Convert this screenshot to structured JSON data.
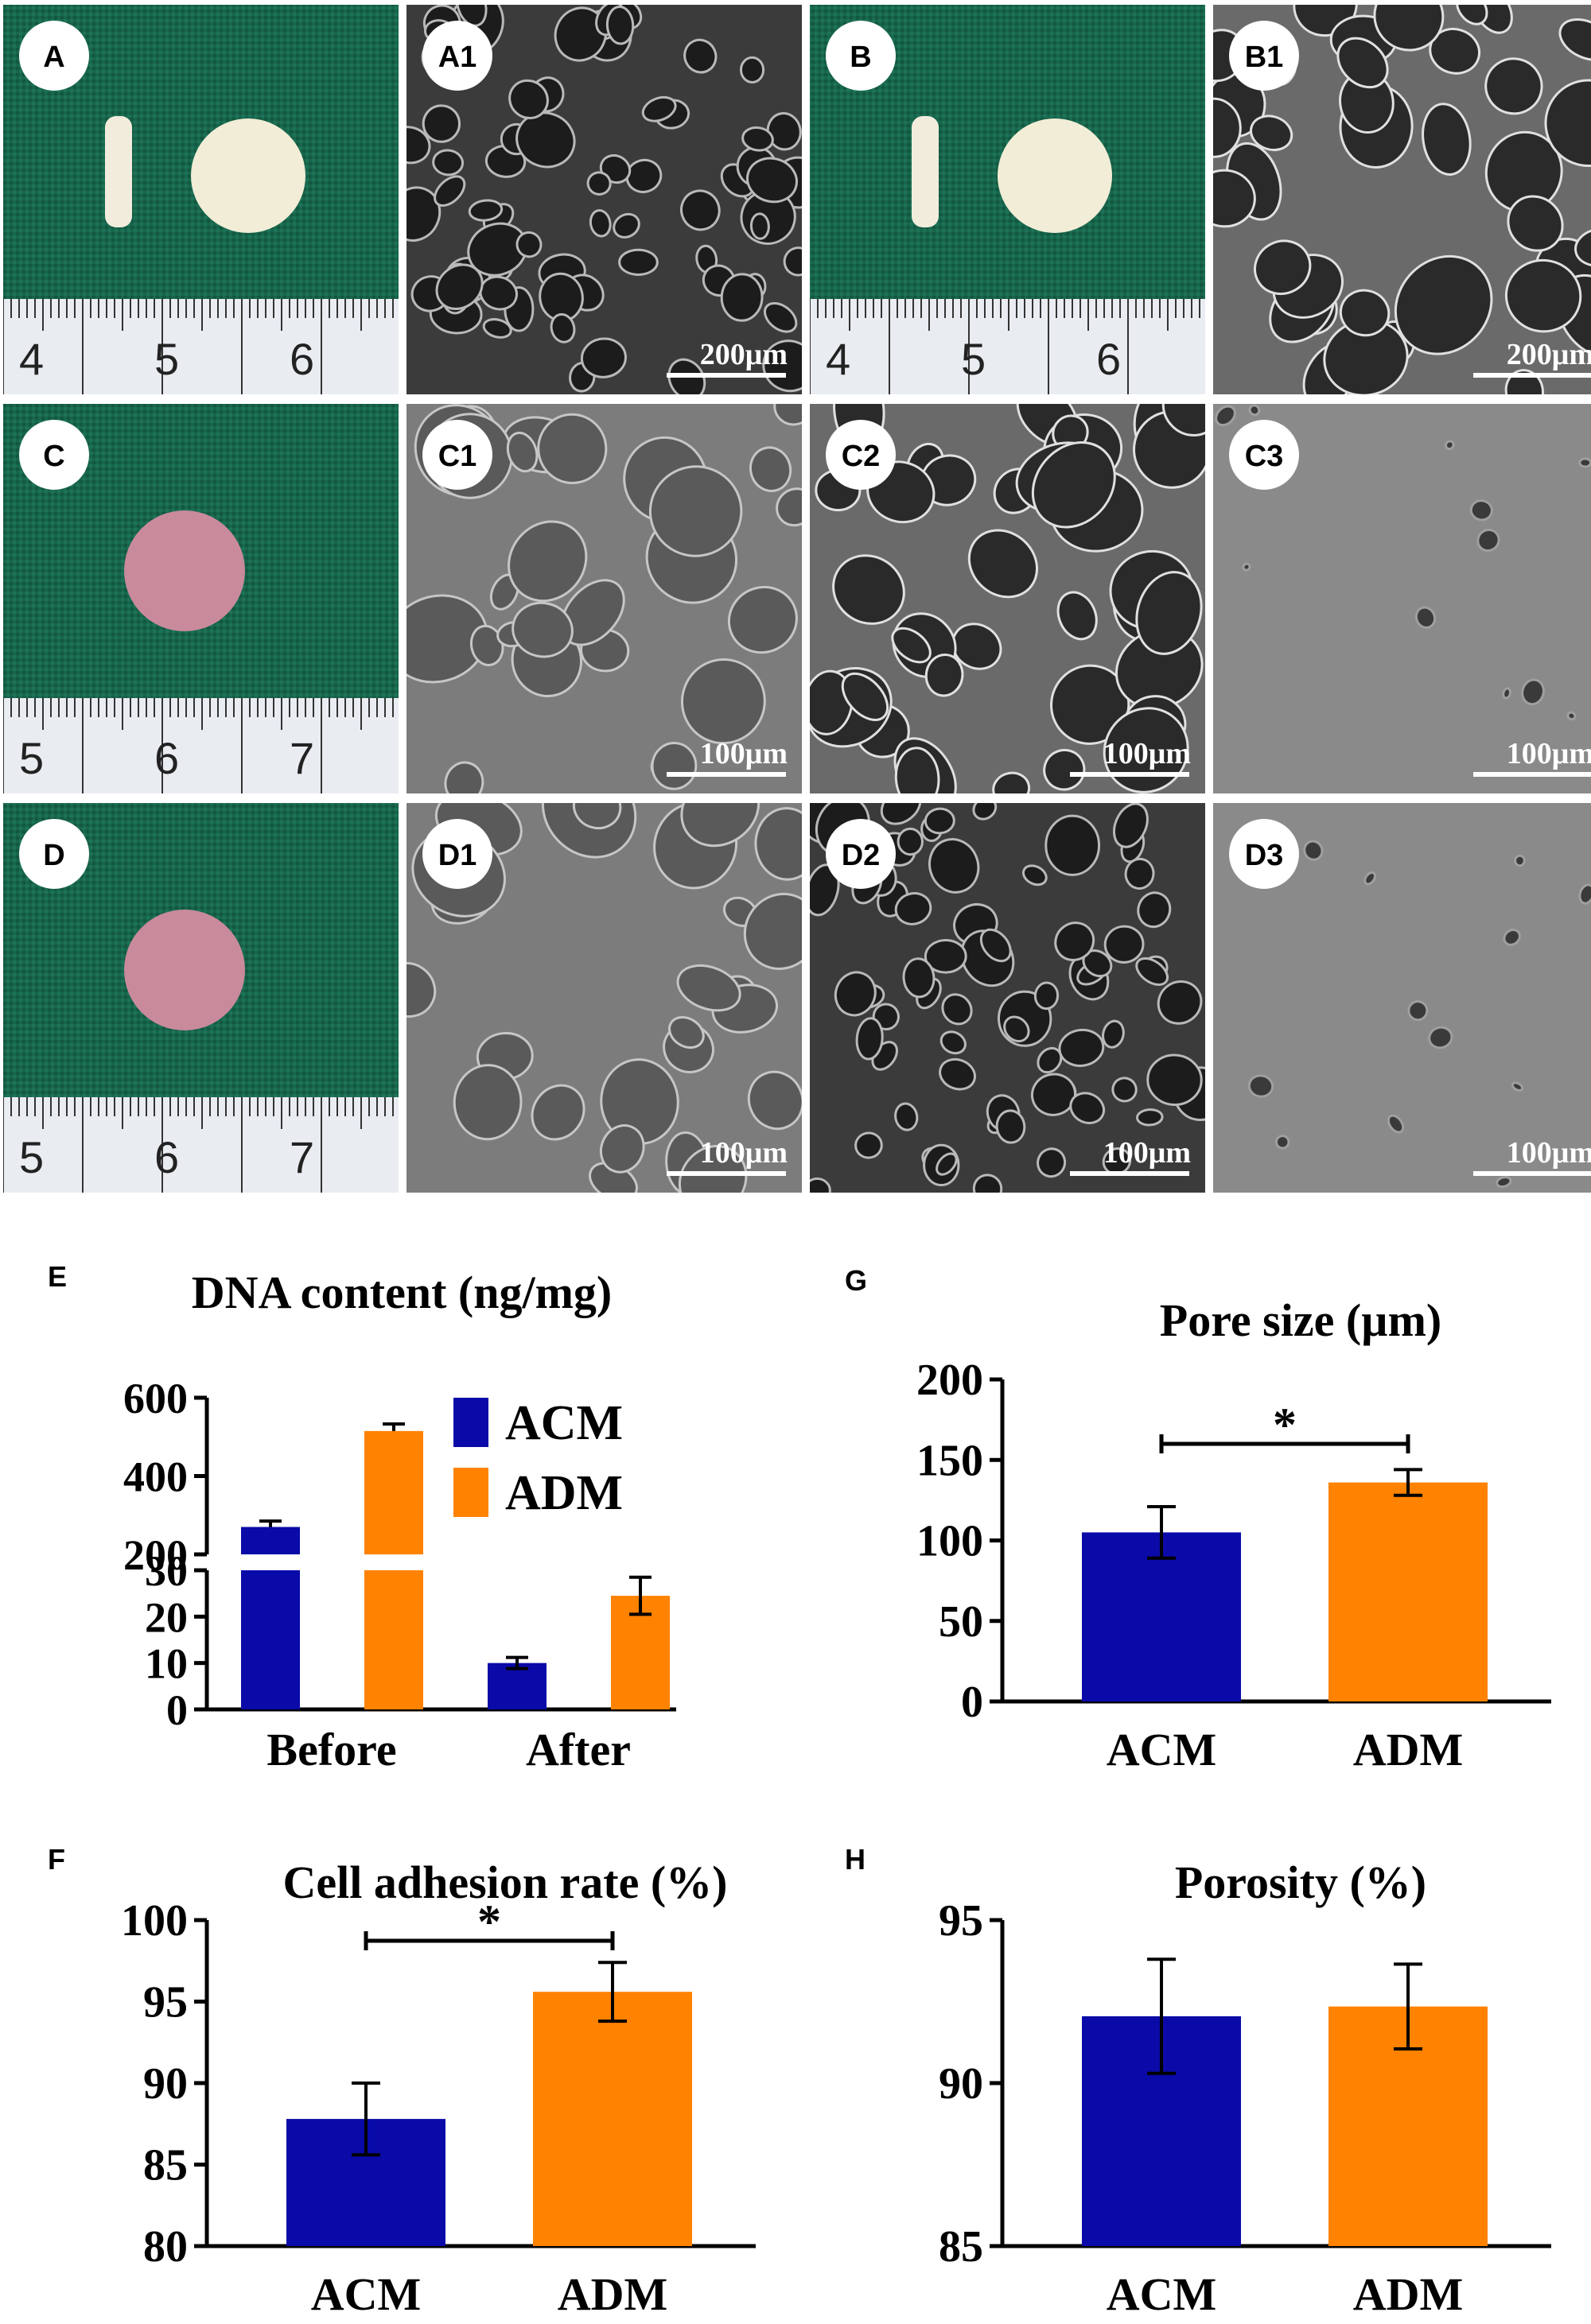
{
  "figure": {
    "photo_panels": [
      {
        "label": "A",
        "type": "photo",
        "ruler": [
          "4",
          "5",
          "6"
        ],
        "sample": "white"
      },
      {
        "label": "A1",
        "type": "sem",
        "scale": "200μm",
        "tone": "porous-dark"
      },
      {
        "label": "B",
        "type": "photo",
        "ruler": [
          "4",
          "5",
          "6"
        ],
        "sample": "white"
      },
      {
        "label": "B1",
        "type": "sem",
        "scale": "200μm",
        "tone": "porous-light"
      },
      {
        "label": "C",
        "type": "photo",
        "ruler": [
          "5",
          "6",
          "7"
        ],
        "sample": "pink"
      },
      {
        "label": "C1",
        "type": "sem",
        "scale": "100μm",
        "tone": "cells"
      },
      {
        "label": "C2",
        "type": "sem",
        "scale": "100μm",
        "tone": "porous-light"
      },
      {
        "label": "C3",
        "type": "sem",
        "scale": "100μm",
        "tone": "flat"
      },
      {
        "label": "D",
        "type": "photo",
        "ruler": [
          "5",
          "6",
          "7"
        ],
        "sample": "pink"
      },
      {
        "label": "D1",
        "type": "sem",
        "scale": "100μm",
        "tone": "cells"
      },
      {
        "label": "D2",
        "type": "sem",
        "scale": "100μm",
        "tone": "porous-dark"
      },
      {
        "label": "D3",
        "type": "sem",
        "scale": "100μm",
        "tone": "flat"
      }
    ],
    "colors": {
      "acm": "#0a0aa8",
      "adm": "#ff8200"
    }
  },
  "chart_data": [
    {
      "panel": "E",
      "type": "bar",
      "title": "DNA content (ng/mg)",
      "categories": [
        "Before",
        "After"
      ],
      "series": [
        {
          "name": "ACM",
          "values": [
            270,
            10
          ],
          "errors": [
            15,
            1.2
          ]
        },
        {
          "name": "ADM",
          "values": [
            515,
            24.5
          ],
          "errors": [
            18,
            4
          ]
        }
      ],
      "axis_break": {
        "lower": [
          0,
          30
        ],
        "upper": [
          200,
          600
        ]
      },
      "yticks_lower": [
        "0",
        "10",
        "20",
        "30"
      ],
      "yticks_upper": [
        "200",
        "400",
        "600"
      ],
      "legend": "top-right"
    },
    {
      "panel": "G",
      "type": "bar",
      "title": "Pore size (µm)",
      "categories": [
        "ACM",
        "ADM"
      ],
      "values": [
        105,
        136
      ],
      "errors": [
        16,
        8
      ],
      "ylim": [
        0,
        200
      ],
      "yticks": [
        "0",
        "50",
        "100",
        "150",
        "200"
      ],
      "significance": "*"
    },
    {
      "panel": "F",
      "type": "bar",
      "title": "Cell adhesion rate (%)",
      "categories": [
        "ACM",
        "ADM"
      ],
      "values": [
        87.8,
        95.6
      ],
      "errors": [
        2.2,
        1.8
      ],
      "ylim": [
        80,
        100
      ],
      "yticks": [
        "80",
        "85",
        "90",
        "95",
        "100"
      ],
      "significance": "*"
    },
    {
      "panel": "H",
      "type": "bar",
      "title": "Porosity (%)",
      "categories": [
        "ACM",
        "ADM"
      ],
      "values": [
        92.05,
        92.35
      ],
      "errors": [
        1.75,
        1.3
      ],
      "ylim": [
        85,
        95
      ],
      "yticks": [
        "85",
        "90",
        "95"
      ]
    }
  ]
}
